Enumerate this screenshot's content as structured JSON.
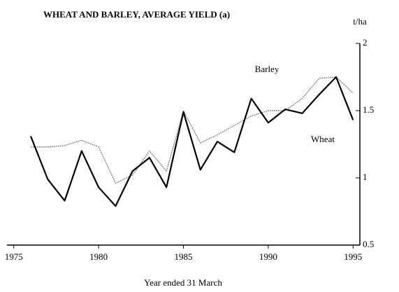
{
  "chart_data": {
    "type": "line",
    "title": "WHEAT AND BARLEY, AVERAGE YIELD (a)",
    "y_label": "t/ha",
    "x_label": "Year ended 31 March",
    "x": [
      1976,
      1977,
      1978,
      1979,
      1980,
      1981,
      1982,
      1983,
      1984,
      1985,
      1986,
      1987,
      1988,
      1989,
      1990,
      1991,
      1992,
      1993,
      1994,
      1995
    ],
    "series": [
      {
        "name": "Barley",
        "color": "#777777",
        "values": [
          1.23,
          1.23,
          1.24,
          1.28,
          1.23,
          0.96,
          1.02,
          1.2,
          1.05,
          1.5,
          1.26,
          1.32,
          1.39,
          1.46,
          1.5,
          1.5,
          1.59,
          1.74,
          1.75,
          1.63
        ]
      },
      {
        "name": "Wheat",
        "color": "#000000",
        "values": [
          1.31,
          0.99,
          0.83,
          1.2,
          0.93,
          0.79,
          1.05,
          1.15,
          0.93,
          1.49,
          1.06,
          1.27,
          1.19,
          1.59,
          1.41,
          1.51,
          1.48,
          1.62,
          1.75,
          1.43
        ]
      }
    ],
    "xlim": [
      1974.6,
      1995.4
    ],
    "xticks": [
      1975,
      1980,
      1985,
      1990,
      1995
    ],
    "ylim": [
      0.5,
      2
    ],
    "yticks": [
      0.5,
      1,
      1.5,
      2
    ],
    "y_axis_side": "right",
    "grid": false
  }
}
